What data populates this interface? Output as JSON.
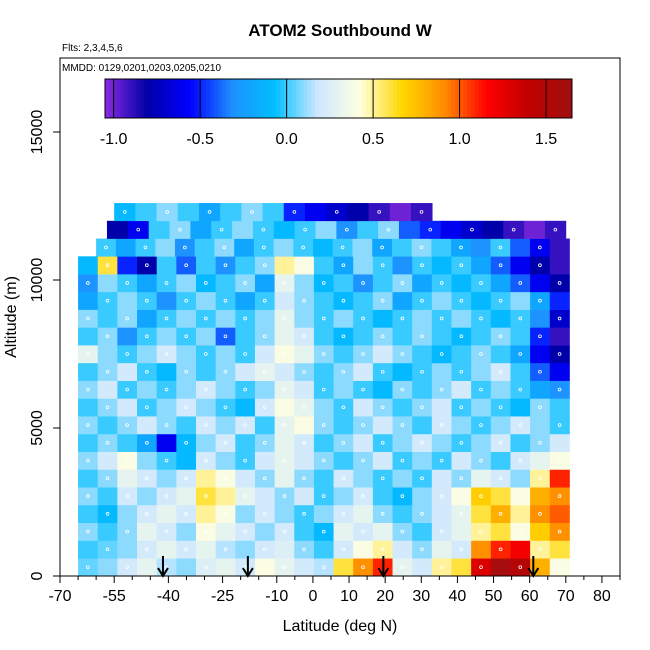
{
  "chart_data": {
    "type": "heatmap",
    "title": "ATOM2 Southbound W",
    "flights_note": "Flts: 2,3,4,5,6",
    "dates_note": "MMDD: 0129,0201,0203,0205,0210",
    "xlabel": "Latitude (deg N)",
    "ylabel": "Altitude (m)",
    "xlim": [
      -70,
      85
    ],
    "ylim": [
      0,
      17500
    ],
    "x_ticks_major": [
      -70,
      -55,
      -40,
      -25,
      -10,
      0,
      10,
      20,
      30,
      40,
      50,
      60,
      70,
      80
    ],
    "x_tick_labels": [
      "-70",
      "-55",
      "-40",
      "-25",
      "-10",
      "0",
      "10",
      "20",
      "30",
      "40",
      "50",
      "60",
      "70",
      "80"
    ],
    "x_ticks_minor": [
      -65,
      -60,
      -50,
      -45,
      -35,
      -30,
      -20,
      -15,
      -5,
      5,
      15,
      25,
      35,
      45,
      55,
      65,
      75,
      85
    ],
    "y_ticks": [
      0,
      5000,
      10000,
      15000
    ],
    "y_tick_labels": [
      "0",
      "5000",
      "10000",
      "15000"
    ],
    "colorbar": {
      "range": [
        -1.05,
        1.65
      ],
      "ticks": [
        -1.0,
        -0.5,
        0.0,
        0.5,
        1.0,
        1.5
      ],
      "tick_labels": [
        "-1.0",
        "-0.5",
        "0.0",
        "0.5",
        "1.0",
        "1.5"
      ],
      "colors": [
        "#8a2be2",
        "#0000a8",
        "#0000ff",
        "#1e90ff",
        "#00bfff",
        "#cde8ff",
        "#ffffe0",
        "#ffd700",
        "#ff8c00",
        "#ff0000",
        "#c00000",
        "#a01010"
      ]
    },
    "arrows_lat": [
      -41.5,
      -18,
      19.5,
      61
    ],
    "altitude_band_m": 600,
    "bands": [
      {
        "alt": 0,
        "lat": [
          -65,
          71
        ],
        "w": [
          0.05,
          0.1,
          0.2,
          0.3,
          0.15,
          0.1,
          0.25,
          0.3,
          0.2,
          0.4,
          0.3,
          0.2,
          0.15,
          0.6,
          0.9,
          1.1,
          0.3,
          0.2,
          0.5,
          0.6,
          1.3,
          1.6,
          1.5,
          0.8,
          0.4
        ]
      },
      {
        "alt": 600,
        "lat": [
          -65,
          71
        ],
        "w": [
          0.0,
          0.05,
          0.1,
          0.2,
          0.3,
          0.2,
          0.3,
          0.15,
          0.1,
          0.2,
          0.25,
          0.1,
          0.0,
          0.2,
          0.4,
          0.5,
          0.2,
          0.1,
          0.3,
          0.2,
          0.9,
          1.1,
          1.2,
          0.5,
          0.6
        ]
      },
      {
        "alt": 1200,
        "lat": [
          -65,
          71
        ],
        "w": [
          0.1,
          0.0,
          0.1,
          0.3,
          0.2,
          0.1,
          0.4,
          0.3,
          0.2,
          0.1,
          0.2,
          0.0,
          -0.1,
          0.3,
          0.2,
          0.3,
          0.1,
          0.0,
          0.2,
          0.3,
          0.5,
          0.6,
          0.4,
          0.7,
          0.9
        ]
      },
      {
        "alt": 1800,
        "lat": [
          -65,
          71
        ],
        "w": [
          0.0,
          -0.1,
          0.1,
          0.2,
          0.3,
          0.2,
          0.5,
          0.4,
          0.1,
          0.2,
          0.1,
          0.0,
          0.1,
          0.2,
          0.3,
          0.1,
          0.0,
          0.1,
          0.2,
          0.3,
          0.6,
          0.8,
          0.5,
          0.9,
          1.0
        ]
      },
      {
        "alt": 2400,
        "lat": [
          -65,
          71
        ],
        "w": [
          0.1,
          0.0,
          0.2,
          0.1,
          0.2,
          0.3,
          0.6,
          0.5,
          0.3,
          0.2,
          0.1,
          0.2,
          0.0,
          0.1,
          0.2,
          0.0,
          -0.1,
          0.1,
          0.2,
          0.4,
          0.7,
          0.6,
          0.4,
          0.8,
          0.9
        ]
      },
      {
        "alt": 3000,
        "lat": [
          -65,
          71
        ],
        "w": [
          0.0,
          0.1,
          0.3,
          0.2,
          0.1,
          0.2,
          0.5,
          0.4,
          0.2,
          0.1,
          0.3,
          0.1,
          0.0,
          0.2,
          0.1,
          0.0,
          0.1,
          0.0,
          0.2,
          0.1,
          0.3,
          0.2,
          0.1,
          0.5,
          1.1
        ]
      },
      {
        "alt": 3600,
        "lat": [
          -65,
          71
        ],
        "w": [
          0.1,
          0.2,
          0.4,
          0.1,
          0.0,
          -0.1,
          0.2,
          0.1,
          0.0,
          0.2,
          0.3,
          0.2,
          0.1,
          0.0,
          0.1,
          0.2,
          0.0,
          0.1,
          0.0,
          0.2,
          0.1,
          0.0,
          0.2,
          0.3,
          0.4
        ]
      },
      {
        "alt": 4200,
        "lat": [
          -65,
          71
        ],
        "w": [
          0.0,
          0.1,
          0.0,
          -0.2,
          -0.6,
          -0.1,
          0.1,
          0.2,
          0.0,
          0.1,
          0.3,
          0.2,
          0.0,
          0.1,
          0.2,
          0.0,
          0.1,
          0.2,
          0.1,
          0.0,
          0.1,
          0.2,
          0.0,
          0.1,
          0.2
        ]
      },
      {
        "alt": 4800,
        "lat": [
          -65,
          71
        ],
        "w": [
          0.1,
          0.0,
          0.1,
          0.2,
          0.1,
          0.0,
          0.2,
          0.1,
          0.2,
          0.0,
          0.3,
          0.4,
          0.1,
          0.0,
          0.1,
          0.2,
          0.1,
          0.0,
          0.2,
          0.1,
          0.0,
          0.1,
          0.2,
          0.1,
          0.0
        ]
      },
      {
        "alt": 5400,
        "lat": [
          -65,
          71
        ],
        "w": [
          0.0,
          0.1,
          0.2,
          0.0,
          0.1,
          0.2,
          0.1,
          0.0,
          -0.1,
          0.2,
          0.4,
          0.3,
          0.1,
          0.0,
          0.2,
          0.1,
          0.0,
          0.1,
          0.2,
          0.0,
          0.1,
          0.0,
          -0.1,
          0.1,
          0.0
        ]
      },
      {
        "alt": 6000,
        "lat": [
          -65,
          71
        ],
        "w": [
          0.1,
          0.2,
          0.0,
          0.1,
          0.0,
          0.1,
          0.2,
          0.1,
          0.0,
          0.1,
          0.3,
          0.2,
          0.0,
          0.1,
          0.0,
          -0.1,
          0.1,
          0.0,
          0.1,
          0.2,
          0.0,
          0.1,
          0.0,
          -0.2,
          -0.3
        ]
      },
      {
        "alt": 6600,
        "lat": [
          -65,
          71
        ],
        "w": [
          0.0,
          0.1,
          0.2,
          0.0,
          -0.1,
          0.1,
          0.0,
          0.1,
          0.2,
          0.3,
          0.2,
          0.1,
          0.0,
          0.1,
          0.2,
          0.0,
          -0.1,
          0.0,
          0.1,
          0.0,
          0.1,
          0.2,
          0.0,
          -0.4,
          -0.6
        ]
      },
      {
        "alt": 7200,
        "lat": [
          -65,
          71
        ],
        "w": [
          0.3,
          0.1,
          0.0,
          0.1,
          0.2,
          0.1,
          0.0,
          0.1,
          0.0,
          0.2,
          0.4,
          0.3,
          0.1,
          0.0,
          0.1,
          0.2,
          0.1,
          0.0,
          -0.1,
          0.0,
          0.1,
          0.0,
          -0.2,
          -0.6,
          -0.8
        ]
      },
      {
        "alt": 7800,
        "lat": [
          -65,
          71
        ],
        "w": [
          0.0,
          0.1,
          -0.3,
          0.0,
          0.1,
          0.0,
          0.1,
          -0.4,
          0.0,
          0.1,
          0.3,
          0.2,
          0.0,
          -0.1,
          0.0,
          0.1,
          0.0,
          0.1,
          0.0,
          -0.1,
          0.0,
          0.1,
          0.0,
          -0.5,
          -0.9
        ]
      },
      {
        "alt": 8400,
        "lat": [
          -65,
          71
        ],
        "w": [
          0.1,
          0.0,
          0.1,
          -0.2,
          0.0,
          0.1,
          0.0,
          0.1,
          0.0,
          0.1,
          0.3,
          0.1,
          0.0,
          0.1,
          0.0,
          -0.1,
          0.0,
          0.1,
          0.0,
          0.1,
          0.0,
          -0.1,
          0.0,
          -0.3,
          -0.7
        ]
      },
      {
        "alt": 9000,
        "lat": [
          -65,
          71
        ],
        "w": [
          -0.2,
          0.0,
          0.1,
          0.0,
          -0.3,
          0.0,
          0.1,
          0.0,
          -0.2,
          0.0,
          0.2,
          0.1,
          0.0,
          -0.1,
          0.0,
          0.1,
          -0.2,
          0.0,
          0.1,
          0.0,
          -0.1,
          0.0,
          0.1,
          -0.2,
          -0.5
        ]
      },
      {
        "alt": 9600,
        "lat": [
          -65,
          71
        ],
        "w": [
          -0.3,
          0.1,
          0.0,
          -0.2,
          0.0,
          0.1,
          -0.1,
          0.0,
          0.1,
          -0.2,
          0.3,
          0.1,
          -0.1,
          0.0,
          -0.3,
          0.0,
          0.1,
          -0.2,
          0.0,
          -0.1,
          0.0,
          -0.2,
          -0.4,
          -0.6,
          -0.8
        ]
      },
      {
        "alt": 10200,
        "lat": [
          -65,
          71
        ],
        "w": [
          -0.1,
          0.6,
          -0.5,
          -0.8,
          0.0,
          -0.4,
          0.0,
          -0.3,
          0.0,
          0.1,
          0.5,
          0.4,
          0.0,
          -0.2,
          0.1,
          0.0,
          -0.3,
          0.0,
          -0.1,
          0.0,
          -0.2,
          -0.4,
          -0.6,
          -0.8,
          -0.9
        ]
      },
      {
        "alt": 10800,
        "lat": [
          -60,
          71
        ],
        "w": [
          0.0,
          -0.2,
          0.0,
          0.1,
          -0.3,
          0.0,
          0.1,
          -0.2,
          0.0,
          0.1,
          0.0,
          -0.1,
          0.0,
          0.1,
          -0.2,
          0.0,
          0.1,
          0.0,
          -0.2,
          -0.3,
          0.0,
          -0.4,
          -0.6,
          -0.9
        ]
      },
      {
        "alt": 11400,
        "lat": [
          -57,
          70
        ],
        "w": [
          -0.8,
          -0.6,
          0.0,
          0.1,
          -0.2,
          0.0,
          0.1,
          0.0,
          -0.1,
          0.0,
          0.1,
          -0.3,
          0.0,
          0.1,
          -0.4,
          -0.5,
          -0.6,
          -0.7,
          -0.8,
          -0.9,
          -1.0,
          -0.9
        ]
      },
      {
        "alt": 12000,
        "lat": [
          -55,
          33
        ],
        "w": [
          -0.1,
          0.0,
          0.1,
          0.0,
          -0.2,
          0.0,
          0.1,
          0.0,
          -0.5,
          -0.6,
          -0.7,
          -0.8,
          -0.9,
          -1.0,
          -0.9
        ]
      }
    ]
  }
}
